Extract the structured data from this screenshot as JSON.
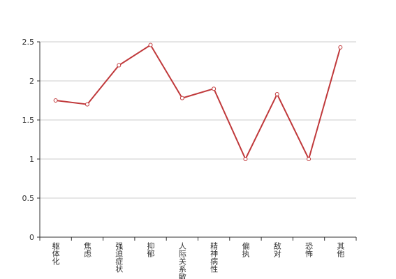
{
  "chart_data": {
    "type": "line",
    "categories": [
      "躯体化",
      "焦虑",
      "强迫症状",
      "抑郁",
      "人际关系敏感",
      "精神病性",
      "偏执",
      "敌对",
      "恐怖",
      "其他"
    ],
    "values": [
      1.75,
      1.7,
      2.2,
      2.46,
      1.78,
      1.9,
      1.0,
      1.83,
      1.0,
      2.43
    ],
    "color": "#c0393b",
    "ylim": [
      0,
      2.5
    ],
    "yticks": [
      0,
      0.5,
      1,
      1.5,
      2,
      2.5
    ],
    "grid": true
  }
}
